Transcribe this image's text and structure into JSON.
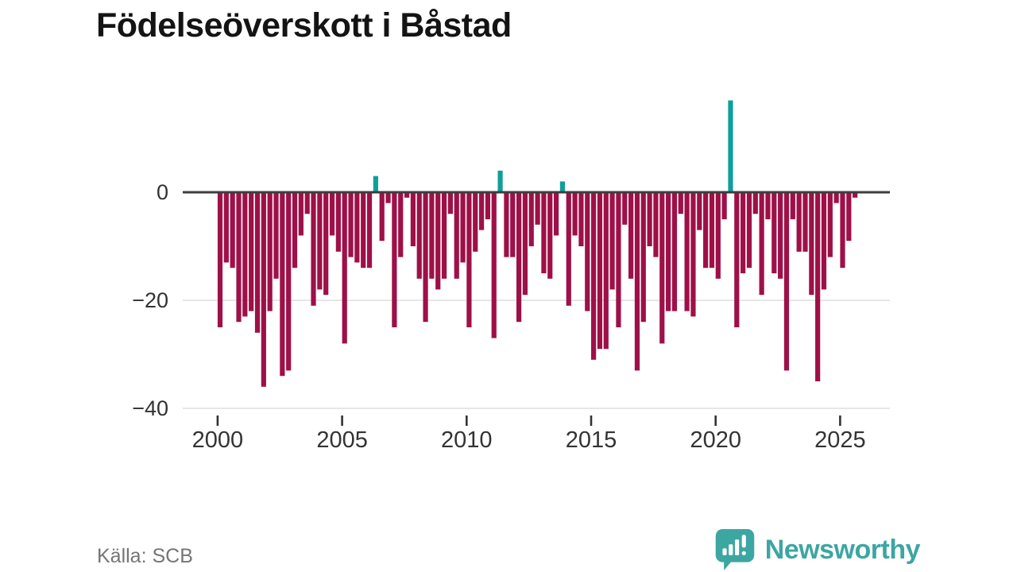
{
  "title": "Födelseöverskott i Båstad",
  "source": "Källa: SCB",
  "logo": {
    "text": "Newsworthy"
  },
  "colors": {
    "negative": "#9e1048",
    "positive": "#0f9f9b",
    "axis": "#3d3d3d",
    "grid": "#dddddd",
    "tick_label": "#333333",
    "title": "#141414",
    "source_text": "#757575",
    "logo": "#3ca6a2"
  },
  "chart_data": {
    "type": "bar",
    "title": "Födelseöverskott i Båstad",
    "frequency": "quarterly",
    "x_start": {
      "year": 2000,
      "quarter": 1
    },
    "x_end": {
      "year": 2025,
      "quarter": 3
    },
    "values": [
      -25,
      -13,
      -14,
      -24,
      -23,
      -22,
      -26,
      -36,
      -22,
      -16,
      -34,
      -33,
      -14,
      -8,
      -4,
      -21,
      -18,
      -19,
      -8,
      -11,
      -28,
      -12,
      -13,
      -14,
      -14,
      3,
      -9,
      -2,
      -25,
      -12,
      -1,
      -10,
      -16,
      -24,
      -16,
      -18,
      -16,
      -4,
      -16,
      -13,
      -25,
      -11,
      -7,
      -5,
      -27,
      4,
      -12,
      -12,
      -24,
      -19,
      -10,
      -6,
      -15,
      -16,
      -8,
      2,
      -21,
      -8,
      -10,
      -22,
      -31,
      -29,
      -29,
      -18,
      -25,
      -6,
      -16,
      -33,
      -24,
      -10,
      -12,
      -28,
      -22,
      -22,
      -4,
      -22,
      -23,
      -7,
      -14,
      -14,
      -16,
      -5,
      17,
      -25,
      -15,
      -14,
      -4,
      -19,
      -5,
      -15,
      -16,
      -33,
      -5,
      -11,
      -11,
      -19,
      -35,
      -18,
      -12,
      -2,
      -14,
      -9,
      -1
    ],
    "y_ticks": [
      {
        "value": 0,
        "label": "0"
      },
      {
        "value": -20,
        "label": "−20"
      },
      {
        "value": -40,
        "label": "−40"
      }
    ],
    "x_ticks": [
      {
        "year": 2000,
        "label": "2000"
      },
      {
        "year": 2005,
        "label": "2005"
      },
      {
        "year": 2010,
        "label": "2010"
      },
      {
        "year": 2015,
        "label": "2015"
      },
      {
        "year": 2020,
        "label": "2020"
      },
      {
        "year": 2025,
        "label": "2025"
      }
    ],
    "ylim": [
      -42,
      18
    ],
    "grid": "horizontal",
    "legend": "none"
  }
}
